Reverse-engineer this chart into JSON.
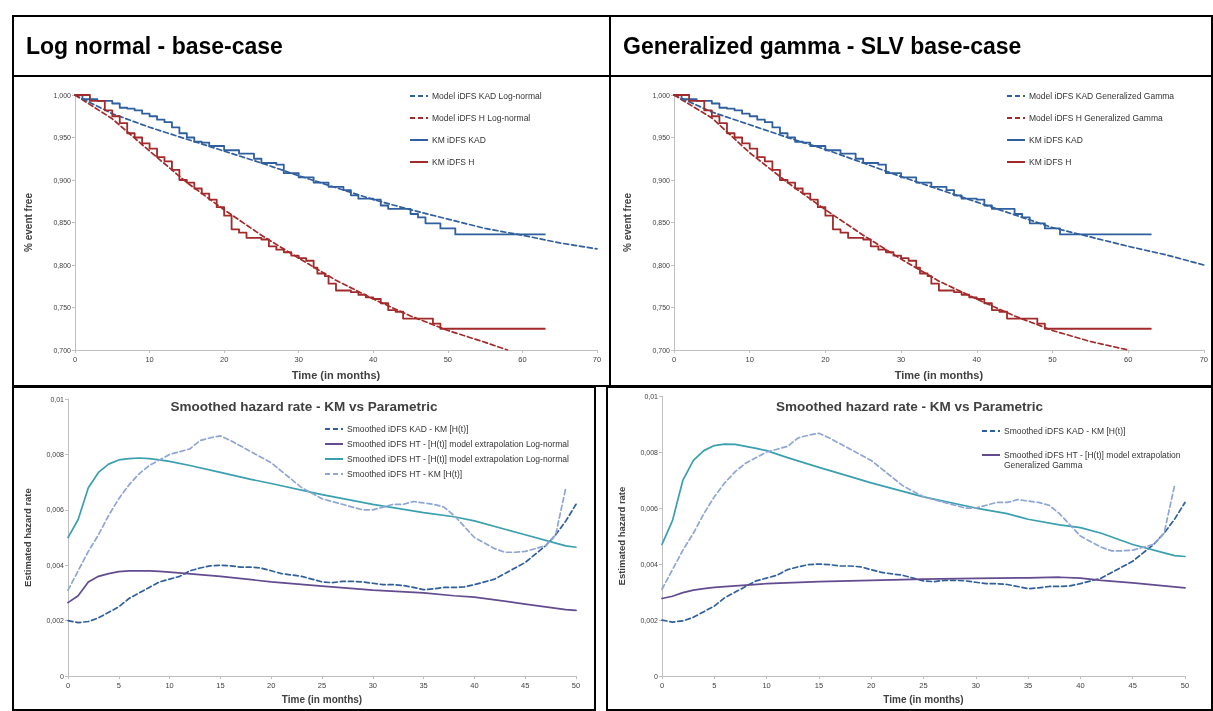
{
  "chart_data": [
    {
      "type": "line",
      "title": "Log normal - base-case",
      "xlabel": "Time (in months)",
      "ylabel": "% event free",
      "xlim": [
        0,
        70
      ],
      "xticks": [
        0,
        10,
        20,
        30,
        40,
        50,
        60,
        70
      ],
      "ylim": [
        0.7,
        1.0
      ],
      "yticks": [
        {
          "value": 0.7,
          "label": "0,700"
        },
        {
          "value": 0.75,
          "label": "0,750"
        },
        {
          "value": 0.8,
          "label": "0,800"
        },
        {
          "value": 0.85,
          "label": "0,850"
        },
        {
          "value": 0.9,
          "label": "0,900"
        },
        {
          "value": 0.95,
          "label": "0,950"
        },
        {
          "value": 1.0,
          "label": "1,000"
        }
      ],
      "legend": "top right",
      "marker": "none",
      "series": [
        {
          "name": "Model iDFS KAD Log-normal",
          "type": "line",
          "line_style": "dashed",
          "color": "#2f5f9e",
          "x": [
            0,
            5,
            10,
            15,
            20,
            25,
            30,
            35,
            40,
            45,
            50,
            55,
            60,
            65,
            70
          ],
          "values": [
            1.0,
            0.978,
            0.962,
            0.948,
            0.934,
            0.92,
            0.905,
            0.891,
            0.877,
            0.865,
            0.854,
            0.843,
            0.835,
            0.826,
            0.819
          ]
        },
        {
          "name": "Model iDFS H Log-normal",
          "type": "line",
          "line_style": "dashed",
          "color": "#a32a2a",
          "x": [
            0,
            5,
            10,
            15,
            20,
            25,
            30,
            35,
            40,
            45,
            50,
            55,
            58
          ],
          "values": [
            1.0,
            0.972,
            0.934,
            0.897,
            0.865,
            0.835,
            0.808,
            0.782,
            0.76,
            0.74,
            0.723,
            0.709,
            0.7
          ]
        },
        {
          "name": "KM iDFS KAD",
          "type": "step",
          "line_style": "solid",
          "color": "#2f5f9e",
          "x": [
            0,
            1,
            3,
            5,
            6,
            7,
            8,
            9,
            10,
            11,
            12,
            13,
            14,
            15,
            16,
            17,
            18,
            20,
            22,
            24,
            25,
            27,
            28,
            30,
            32,
            34,
            36,
            37,
            38,
            40,
            41,
            42,
            44,
            45,
            46,
            47,
            49,
            51,
            63
          ],
          "values": [
            1.0,
            0.995,
            0.993,
            0.99,
            0.985,
            0.984,
            0.982,
            0.978,
            0.975,
            0.971,
            0.968,
            0.962,
            0.955,
            0.95,
            0.945,
            0.944,
            0.94,
            0.935,
            0.931,
            0.925,
            0.92,
            0.918,
            0.908,
            0.903,
            0.897,
            0.892,
            0.888,
            0.882,
            0.878,
            0.877,
            0.87,
            0.866,
            0.866,
            0.86,
            0.856,
            0.849,
            0.843,
            0.836,
            0.836
          ]
        },
        {
          "name": "KM iDFS H",
          "type": "step",
          "line_style": "solid",
          "color": "#a32a2a",
          "x": [
            0,
            2,
            4,
            5,
            6,
            7,
            8,
            9,
            10,
            11,
            12,
            13,
            14,
            15,
            16,
            17,
            18,
            19,
            20,
            21,
            22,
            23,
            25,
            26,
            27,
            28,
            29,
            30,
            31,
            32,
            32.5,
            33.5,
            34,
            35,
            37,
            38,
            39,
            40,
            41,
            42,
            43,
            44,
            47,
            48,
            49,
            63
          ],
          "values": [
            1.0,
            0.993,
            0.982,
            0.975,
            0.967,
            0.955,
            0.95,
            0.943,
            0.937,
            0.927,
            0.922,
            0.912,
            0.9,
            0.897,
            0.89,
            0.884,
            0.877,
            0.868,
            0.858,
            0.842,
            0.838,
            0.832,
            0.83,
            0.822,
            0.818,
            0.815,
            0.811,
            0.808,
            0.805,
            0.797,
            0.79,
            0.787,
            0.778,
            0.77,
            0.768,
            0.765,
            0.762,
            0.76,
            0.755,
            0.747,
            0.745,
            0.737,
            0.737,
            0.731,
            0.725,
            0.725
          ]
        }
      ]
    },
    {
      "type": "line",
      "title": "Generalized gamma - SLV base-case",
      "xlabel": "Time (in months)",
      "ylabel": "% event free",
      "xlim": [
        0,
        70
      ],
      "xticks": [
        0,
        10,
        20,
        30,
        40,
        50,
        60,
        70
      ],
      "ylim": [
        0.7,
        1.0
      ],
      "yticks": [
        {
          "value": 0.7,
          "label": "0,700"
        },
        {
          "value": 0.75,
          "label": "0,750"
        },
        {
          "value": 0.8,
          "label": "0,800"
        },
        {
          "value": 0.85,
          "label": "0,850"
        },
        {
          "value": 0.9,
          "label": "0,900"
        },
        {
          "value": 0.95,
          "label": "0,950"
        },
        {
          "value": 1.0,
          "label": "1,000"
        }
      ],
      "legend": "top right",
      "marker": "none",
      "series": [
        {
          "name": "Model iDFS KAD Generalized Gamma",
          "type": "line",
          "line_style": "dashed",
          "color": "#2f5f9e",
          "x": [
            0,
            5,
            10,
            15,
            20,
            25,
            30,
            35,
            40,
            45,
            50,
            55,
            60,
            65,
            70
          ],
          "values": [
            1.0,
            0.98,
            0.965,
            0.95,
            0.936,
            0.92,
            0.904,
            0.889,
            0.874,
            0.859,
            0.844,
            0.833,
            0.822,
            0.812,
            0.8
          ]
        },
        {
          "name": "Model iDFS H Generalized Gamma",
          "type": "line",
          "line_style": "dashed",
          "color": "#a32a2a",
          "x": [
            0,
            5,
            10,
            15,
            20,
            25,
            30,
            35,
            40,
            45,
            50,
            55,
            60
          ],
          "values": [
            1.0,
            0.973,
            0.932,
            0.897,
            0.865,
            0.835,
            0.807,
            0.781,
            0.76,
            0.74,
            0.723,
            0.71,
            0.7
          ]
        },
        {
          "name": "KM iDFS KAD",
          "type": "step",
          "line_style": "solid",
          "color": "#2f5f9e",
          "x": [
            0,
            1,
            3,
            5,
            6,
            7,
            8,
            9,
            10,
            11,
            12,
            13,
            14,
            15,
            16,
            17,
            18,
            20,
            22,
            24,
            25,
            27,
            28,
            30,
            32,
            34,
            36,
            37,
            38,
            40,
            41,
            42,
            44,
            45,
            46,
            47,
            49,
            51,
            63
          ],
          "values": [
            1.0,
            0.995,
            0.993,
            0.99,
            0.985,
            0.984,
            0.982,
            0.978,
            0.975,
            0.971,
            0.968,
            0.962,
            0.955,
            0.95,
            0.945,
            0.944,
            0.94,
            0.935,
            0.931,
            0.925,
            0.92,
            0.918,
            0.908,
            0.903,
            0.897,
            0.892,
            0.888,
            0.882,
            0.878,
            0.877,
            0.87,
            0.866,
            0.866,
            0.86,
            0.856,
            0.849,
            0.843,
            0.836,
            0.836
          ]
        },
        {
          "name": "KM iDFS H",
          "type": "step",
          "line_style": "solid",
          "color": "#a32a2a",
          "x": [
            0,
            2,
            4,
            5,
            6,
            7,
            8,
            9,
            10,
            11,
            12,
            13,
            14,
            15,
            16,
            17,
            18,
            19,
            20,
            21,
            22,
            23,
            25,
            26,
            27,
            28,
            29,
            30,
            31,
            32,
            32.5,
            33.5,
            34,
            35,
            37,
            38,
            39,
            40,
            41,
            42,
            43,
            44,
            47,
            48,
            49,
            63
          ],
          "values": [
            1.0,
            0.993,
            0.982,
            0.975,
            0.967,
            0.955,
            0.95,
            0.943,
            0.937,
            0.927,
            0.922,
            0.912,
            0.9,
            0.897,
            0.89,
            0.884,
            0.877,
            0.868,
            0.858,
            0.842,
            0.838,
            0.832,
            0.83,
            0.822,
            0.818,
            0.815,
            0.811,
            0.808,
            0.805,
            0.797,
            0.79,
            0.787,
            0.778,
            0.77,
            0.768,
            0.765,
            0.762,
            0.76,
            0.755,
            0.747,
            0.745,
            0.737,
            0.737,
            0.731,
            0.725,
            0.725
          ]
        }
      ]
    },
    {
      "type": "line",
      "title": "Smoothed hazard rate - KM vs Parametric",
      "xlabel": "Time (in months)",
      "ylabel": "Estimated hazard rate",
      "xlim": [
        0,
        50
      ],
      "xticks": [
        0,
        5,
        10,
        15,
        20,
        25,
        30,
        35,
        40,
        45,
        50
      ],
      "ylim": [
        0,
        0.01
      ],
      "yticks": [
        0,
        {
          "value": 0.002,
          "label": "0,002"
        },
        {
          "value": 0.004,
          "label": "0,004"
        },
        {
          "value": 0.006,
          "label": "0,006"
        },
        {
          "value": 0.008,
          "label": "0,008"
        },
        {
          "value": 0.01,
          "label": "0,01"
        }
      ],
      "legend": "top right",
      "marker": "none",
      "series": [
        {
          "name": "Smoothed iDFS KAD - KM [H(t)]",
          "type": "line",
          "line_style": "dashed",
          "color": "#2f5f9e",
          "x": [
            0,
            1,
            2,
            3,
            4,
            5,
            6,
            7,
            8,
            9,
            10,
            11,
            12,
            13,
            14,
            15,
            16,
            17,
            18,
            19,
            20,
            21,
            22,
            23,
            24,
            25,
            26,
            27,
            28,
            29,
            30,
            31,
            32,
            33,
            34,
            35,
            36,
            37,
            38,
            39,
            40,
            41,
            42,
            43,
            44,
            45,
            46,
            47,
            48,
            49,
            50
          ],
          "values": [
            0.002,
            0.00193,
            0.00197,
            0.0021,
            0.0023,
            0.0025,
            0.0028,
            0.003,
            0.0032,
            0.0034,
            0.0035,
            0.0036,
            0.0038,
            0.0039,
            0.00398,
            0.004,
            0.00398,
            0.00393,
            0.00393,
            0.0039,
            0.0038,
            0.0037,
            0.00365,
            0.0036,
            0.0035,
            0.0034,
            0.00337,
            0.00342,
            0.00342,
            0.0034,
            0.00335,
            0.0033,
            0.0033,
            0.00327,
            0.0032,
            0.00312,
            0.00315,
            0.0032,
            0.0032,
            0.00322,
            0.0033,
            0.0034,
            0.0035,
            0.0037,
            0.0039,
            0.0041,
            0.0044,
            0.0047,
            0.0051,
            0.0056,
            0.0062
          ]
        },
        {
          "name": "Smoothed iDFS HT - [H(t)] model extrapolation Log-normal",
          "type": "line",
          "line_style": "solid",
          "color": "#634b8f",
          "x": [
            0,
            1,
            2,
            3,
            4,
            5,
            6,
            7,
            8,
            9,
            10,
            15,
            20,
            25,
            30,
            35,
            38,
            40,
            45,
            49,
            50
          ],
          "values": [
            0.00265,
            0.0029,
            0.0034,
            0.0036,
            0.0037,
            0.00377,
            0.0038,
            0.0038,
            0.0038,
            0.00378,
            0.00375,
            0.0036,
            0.0034,
            0.00325,
            0.0031,
            0.003,
            0.0029,
            0.00285,
            0.0026,
            0.0024,
            0.00237
          ]
        },
        {
          "name": "Smoothed iDFS HT - [H(t)] model extrapolation Log-normal",
          "type": "line",
          "line_style": "solid",
          "color": "#3aa0b0",
          "x": [
            0,
            1,
            2,
            3,
            4,
            5,
            6,
            7,
            8,
            9,
            10,
            12,
            15,
            18,
            20,
            25,
            30,
            35,
            38,
            40,
            43,
            45,
            48,
            49,
            50
          ],
          "values": [
            0.005,
            0.00565,
            0.0068,
            0.00735,
            0.00765,
            0.0078,
            0.00785,
            0.00787,
            0.00785,
            0.0078,
            0.00775,
            0.0076,
            0.00735,
            0.0071,
            0.00695,
            0.00655,
            0.0062,
            0.0059,
            0.00575,
            0.0056,
            0.0053,
            0.0051,
            0.0048,
            0.0047,
            0.00465
          ]
        },
        {
          "name": "Smoothed iDFS HT - KM [H(t)]",
          "type": "line",
          "line_style": "dashed",
          "color": "#8ea6d4",
          "x": [
            0,
            1,
            2,
            3,
            4,
            5,
            6,
            7,
            8,
            9,
            10,
            11,
            12,
            13,
            14,
            15,
            16,
            17,
            18,
            19,
            20,
            21,
            22,
            23,
            24,
            25,
            26,
            27,
            28,
            29,
            30,
            31,
            32,
            33,
            34,
            35,
            36,
            37,
            38,
            39,
            40,
            41,
            42,
            43,
            44,
            45,
            46,
            47,
            48,
            49
          ],
          "values": [
            0.0031,
            0.0038,
            0.0045,
            0.0051,
            0.0058,
            0.0064,
            0.0069,
            0.0073,
            0.0076,
            0.0078,
            0.008,
            0.0081,
            0.0082,
            0.0085,
            0.0086,
            0.00867,
            0.0085,
            0.0083,
            0.0081,
            0.0079,
            0.0077,
            0.0074,
            0.0071,
            0.0068,
            0.0066,
            0.0064,
            0.0063,
            0.0062,
            0.0061,
            0.006,
            0.006,
            0.0061,
            0.0062,
            0.0062,
            0.0063,
            0.00625,
            0.0062,
            0.0061,
            0.0058,
            0.0054,
            0.005,
            0.0048,
            0.0046,
            0.00447,
            0.00447,
            0.0045,
            0.0046,
            0.0047,
            0.0051,
            0.0068
          ]
        }
      ]
    },
    {
      "type": "line",
      "title": "Smoothed hazard rate - KM vs Parametric",
      "xlabel": "Time (in months)",
      "ylabel": "Estimated hazard rate",
      "xlim": [
        0,
        50
      ],
      "xticks": [
        0,
        5,
        10,
        15,
        20,
        25,
        30,
        35,
        40,
        45,
        50
      ],
      "ylim": [
        0,
        0.01
      ],
      "yticks": [
        0,
        {
          "value": 0.002,
          "label": "0,002"
        },
        {
          "value": 0.004,
          "label": "0,004"
        },
        {
          "value": 0.006,
          "label": "0,006"
        },
        {
          "value": 0.008,
          "label": "0,008"
        },
        {
          "value": 0.01,
          "label": "0,01"
        }
      ],
      "legend": "top right",
      "marker": "none",
      "series": [
        {
          "name": "Smoothed iDFS KAD - KM [H(t)]",
          "type": "line",
          "line_style": "dashed",
          "color": "#2f5f9e",
          "x": [
            0,
            1,
            2,
            3,
            4,
            5,
            6,
            7,
            8,
            9,
            10,
            11,
            12,
            13,
            14,
            15,
            16,
            17,
            18,
            19,
            20,
            21,
            22,
            23,
            24,
            25,
            26,
            27,
            28,
            29,
            30,
            31,
            32,
            33,
            34,
            35,
            36,
            37,
            38,
            39,
            40,
            41,
            42,
            43,
            44,
            45,
            46,
            47,
            48,
            49,
            50
          ],
          "values": [
            0.002,
            0.00193,
            0.00197,
            0.0021,
            0.0023,
            0.0025,
            0.0028,
            0.003,
            0.0032,
            0.0034,
            0.0035,
            0.0036,
            0.0038,
            0.0039,
            0.00398,
            0.004,
            0.00398,
            0.00393,
            0.00393,
            0.0039,
            0.0038,
            0.0037,
            0.00365,
            0.0036,
            0.0035,
            0.0034,
            0.00337,
            0.00342,
            0.00342,
            0.0034,
            0.00335,
            0.0033,
            0.0033,
            0.00327,
            0.0032,
            0.00312,
            0.00315,
            0.0032,
            0.0032,
            0.00322,
            0.0033,
            0.0034,
            0.0035,
            0.0037,
            0.0039,
            0.0041,
            0.0044,
            0.0047,
            0.0051,
            0.0056,
            0.0062
          ]
        },
        {
          "name": "Smoothed iDFS HT - [H(t)] model extrapolation Generalized Gamma",
          "type": "line",
          "line_style": "solid",
          "color": "#634b8f",
          "x": [
            0,
            1,
            2,
            3,
            4,
            5,
            7,
            10,
            15,
            20,
            25,
            30,
            35,
            38,
            40,
            42,
            45,
            48,
            50
          ],
          "values": [
            0.00277,
            0.00285,
            0.00298,
            0.00307,
            0.00312,
            0.00317,
            0.00322,
            0.0033,
            0.00337,
            0.00342,
            0.00346,
            0.00349,
            0.00351,
            0.00353,
            0.0035,
            0.00342,
            0.00333,
            0.00322,
            0.00315
          ]
        },
        {
          "type": "line",
          "line_style": "solid",
          "color": "#3aa0b0",
          "x": [
            0,
            1,
            2,
            3,
            4,
            5,
            6,
            7,
            8,
            9,
            10,
            12,
            15,
            18,
            20,
            25,
            30,
            33,
            35,
            38,
            40,
            42,
            45,
            48,
            49,
            50
          ],
          "values": [
            0.0047,
            0.00555,
            0.007,
            0.0077,
            0.00805,
            0.00823,
            0.00828,
            0.00827,
            0.0082,
            0.00813,
            0.00805,
            0.0078,
            0.00745,
            0.00712,
            0.0069,
            0.0064,
            0.006,
            0.0058,
            0.0056,
            0.0054,
            0.0053,
            0.0051,
            0.0047,
            0.0044,
            0.0043,
            0.00427
          ]
        },
        {
          "type": "line",
          "line_style": "dashed",
          "color": "#8ea6d4",
          "x": [
            0,
            1,
            2,
            3,
            4,
            5,
            6,
            7,
            8,
            9,
            10,
            11,
            12,
            13,
            14,
            15,
            16,
            17,
            18,
            19,
            20,
            21,
            22,
            23,
            24,
            25,
            26,
            27,
            28,
            29,
            30,
            31,
            32,
            33,
            34,
            35,
            36,
            37,
            38,
            39,
            40,
            41,
            42,
            43,
            44,
            45,
            46,
            47,
            48,
            49
          ],
          "values": [
            0.0031,
            0.0038,
            0.0045,
            0.0051,
            0.0058,
            0.0064,
            0.0069,
            0.0073,
            0.0076,
            0.0078,
            0.008,
            0.0081,
            0.0082,
            0.0085,
            0.0086,
            0.00867,
            0.0085,
            0.0083,
            0.0081,
            0.0079,
            0.0077,
            0.0074,
            0.0071,
            0.0068,
            0.0066,
            0.0064,
            0.0063,
            0.0062,
            0.0061,
            0.006,
            0.006,
            0.0061,
            0.0062,
            0.0062,
            0.0063,
            0.00625,
            0.0062,
            0.0061,
            0.0058,
            0.0054,
            0.005,
            0.0048,
            0.0046,
            0.00447,
            0.00447,
            0.0045,
            0.0046,
            0.0047,
            0.0051,
            0.0068
          ]
        }
      ]
    }
  ]
}
